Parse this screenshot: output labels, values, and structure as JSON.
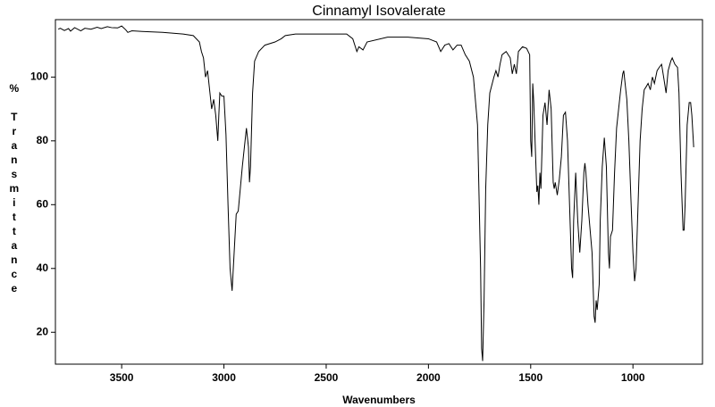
{
  "chart_data": {
    "type": "line",
    "title": "Cinnamyl Isovalerate",
    "x_label": "Wavenumbers",
    "y_label": "% Transmittance",
    "color": "#000000",
    "xlim": [
      3824,
      660
    ],
    "ylim": [
      10,
      118
    ],
    "xticks": [
      3500,
      3000,
      2500,
      2000,
      1500,
      1000
    ],
    "yticks": [
      20,
      40,
      60,
      80,
      100
    ],
    "x": [
      3810,
      3800,
      3780,
      3760,
      3750,
      3730,
      3700,
      3680,
      3650,
      3620,
      3600,
      3570,
      3550,
      3520,
      3500,
      3480,
      3470,
      3450,
      3400,
      3300,
      3200,
      3150,
      3120,
      3110,
      3100,
      3090,
      3080,
      3070,
      3060,
      3050,
      3040,
      3030,
      3025,
      3020,
      3010,
      3000,
      2990,
      2980,
      2970,
      2960,
      2950,
      2940,
      2930,
      2920,
      2910,
      2900,
      2890,
      2880,
      2875,
      2870,
      2860,
      2850,
      2830,
      2800,
      2750,
      2720,
      2700,
      2650,
      2600,
      2500,
      2400,
      2370,
      2350,
      2340,
      2320,
      2300,
      2200,
      2100,
      2000,
      1960,
      1940,
      1920,
      1900,
      1880,
      1860,
      1840,
      1820,
      1800,
      1780,
      1760,
      1745,
      1740,
      1735,
      1728,
      1720,
      1710,
      1700,
      1680,
      1670,
      1660,
      1650,
      1640,
      1620,
      1600,
      1590,
      1580,
      1570,
      1560,
      1540,
      1520,
      1505,
      1500,
      1495,
      1490,
      1485,
      1470,
      1465,
      1460,
      1455,
      1450,
      1440,
      1430,
      1420,
      1410,
      1400,
      1390,
      1385,
      1380,
      1370,
      1360,
      1350,
      1340,
      1330,
      1320,
      1310,
      1300,
      1295,
      1290,
      1280,
      1270,
      1260,
      1250,
      1240,
      1235,
      1230,
      1220,
      1200,
      1190,
      1185,
      1180,
      1175,
      1165,
      1160,
      1150,
      1140,
      1130,
      1120,
      1115,
      1110,
      1100,
      1090,
      1080,
      1070,
      1060,
      1050,
      1045,
      1035,
      1030,
      1020,
      1010,
      1000,
      992,
      985,
      975,
      965,
      955,
      945,
      935,
      926,
      915,
      905,
      895,
      882,
      872,
      860,
      850,
      838,
      828,
      815,
      808,
      795,
      782,
      775,
      765,
      755,
      750,
      745,
      735,
      725,
      718,
      712,
      703
    ],
    "values": [
      115,
      115.3,
      114.6,
      115.2,
      114.4,
      115.5,
      114.5,
      115.3,
      115,
      115.6,
      115.2,
      115.8,
      115.5,
      115.4,
      116,
      114.8,
      114,
      114.5,
      114.3,
      114,
      113.5,
      113,
      111,
      108,
      106,
      100,
      102,
      96,
      90,
      93,
      88,
      80,
      88,
      95,
      94,
      94,
      82,
      60,
      40,
      33,
      45,
      57,
      58,
      65,
      72,
      78,
      84,
      78,
      67,
      72,
      95,
      105,
      108,
      110,
      111,
      112,
      113,
      113.5,
      113.5,
      113.5,
      113.5,
      112,
      108,
      109.5,
      108.5,
      111,
      112.5,
      112.5,
      112,
      111,
      108,
      110,
      110.5,
      108.5,
      110,
      110,
      107,
      105,
      100,
      85,
      40,
      15,
      11,
      30,
      65,
      85,
      95,
      100,
      102,
      100,
      104,
      107,
      108,
      106,
      101,
      104,
      101,
      108,
      109.5,
      109,
      107,
      80,
      75,
      98,
      92,
      64,
      66,
      60,
      70,
      65,
      88,
      92,
      85,
      96,
      90,
      67,
      65,
      67,
      63,
      68,
      75,
      88,
      89,
      80,
      60,
      40,
      37,
      55,
      70,
      55,
      45,
      55,
      70,
      73,
      70,
      60,
      45,
      25,
      23,
      30,
      27,
      35,
      55,
      72,
      81,
      72,
      45,
      40,
      50,
      52,
      70,
      84,
      90,
      96,
      101,
      102,
      96,
      93,
      80,
      62,
      45,
      36,
      40,
      60,
      80,
      90,
      96,
      97,
      98,
      96,
      100,
      98,
      102,
      103,
      104,
      100,
      95,
      102,
      105,
      106,
      104,
      103,
      95,
      70,
      52,
      52,
      60,
      85,
      92,
      92,
      88,
      78
    ]
  }
}
